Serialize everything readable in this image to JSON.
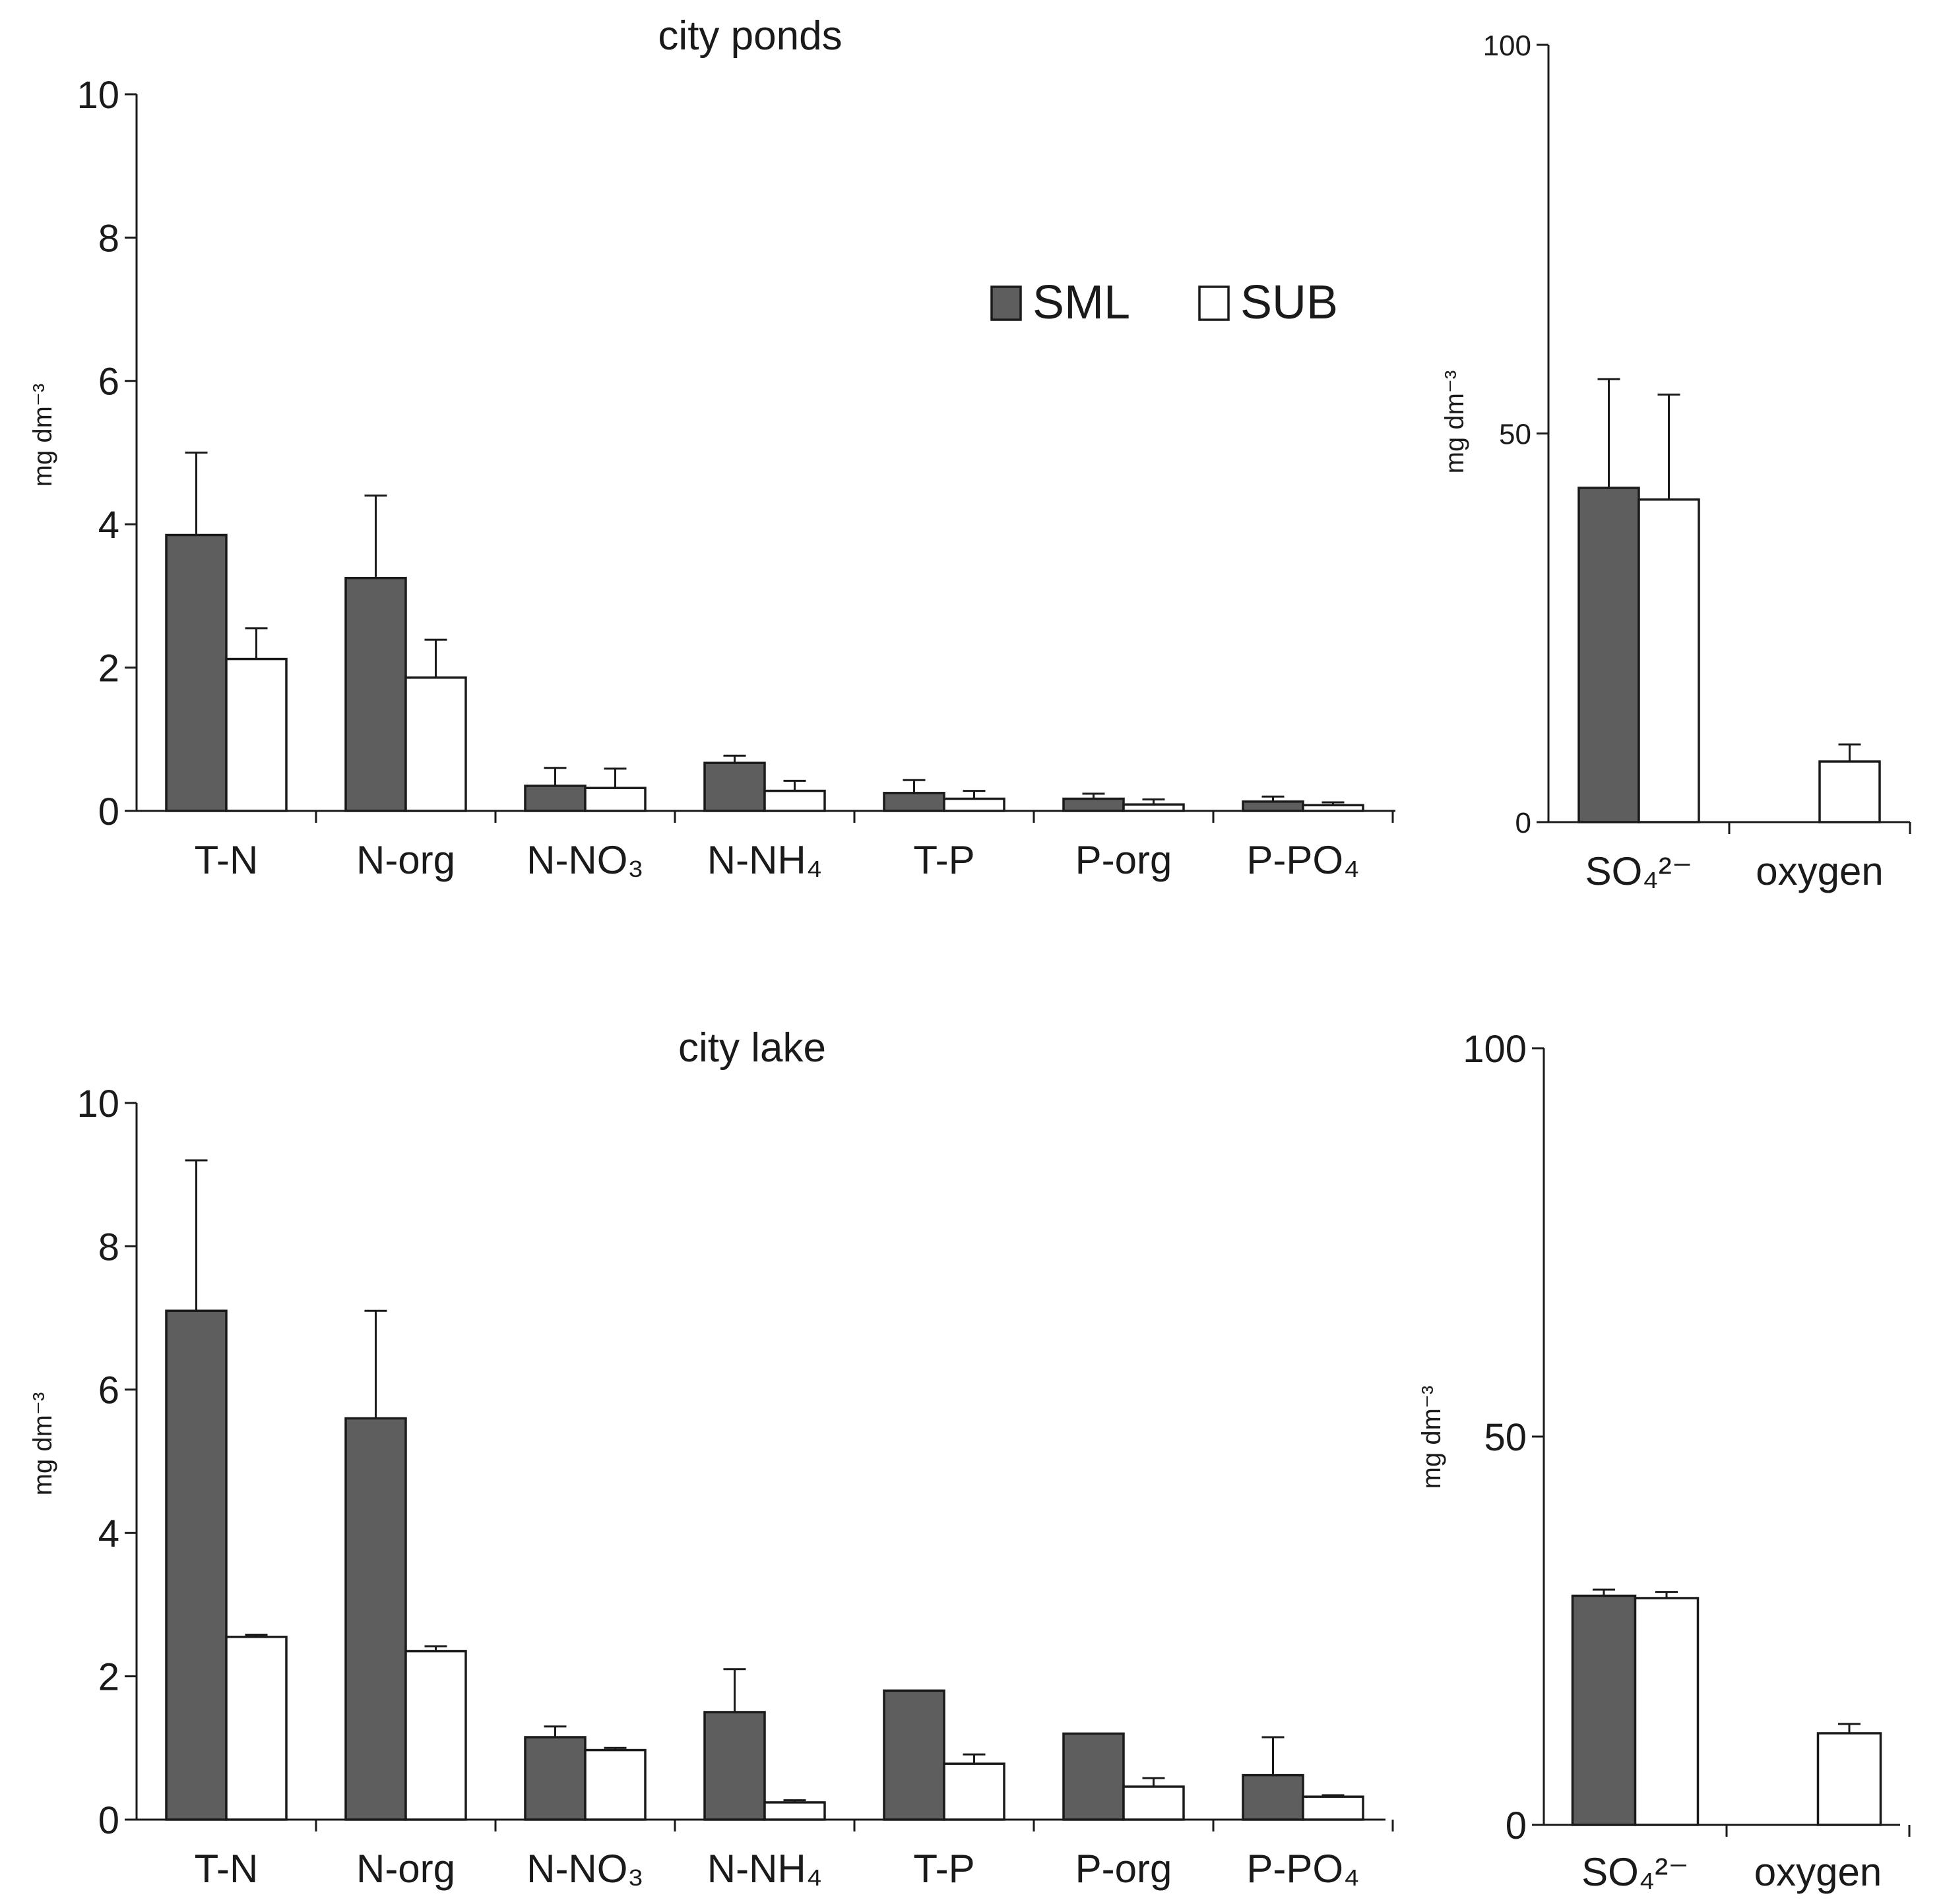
{
  "colors": {
    "sml": "#5e5e5e",
    "sub": "#ffffff",
    "axis": "#1a1a1a",
    "text": "#1a1a1a"
  },
  "legend": {
    "position": "top-right",
    "items": [
      {
        "label": "SML",
        "color": "#5e5e5e"
      },
      {
        "label": "SUB",
        "color": "#ffffff"
      }
    ]
  },
  "chart_data": [
    {
      "id": "ponds-main",
      "type": "bar",
      "title": "city ponds",
      "xlabel": "",
      "ylabel": "mg dm⁻³",
      "ylim": [
        0,
        10
      ],
      "yticks": [
        "0",
        "2",
        "4",
        "6",
        "8",
        "10"
      ],
      "grid": false,
      "categories": [
        "T-N",
        "N-org",
        "N-NO₃",
        "N-NH₄",
        "T-P",
        "P-org",
        "P-PO₄"
      ],
      "series": [
        {
          "name": "SML",
          "values": [
            3.85,
            3.25,
            0.35,
            0.67,
            0.25,
            0.17,
            0.13
          ],
          "errors": [
            1.15,
            1.15,
            0.25,
            0.1,
            0.18,
            0.07,
            0.07
          ]
        },
        {
          "name": "SUB",
          "values": [
            2.12,
            1.86,
            0.32,
            0.28,
            0.17,
            0.09,
            0.08
          ],
          "errors": [
            0.43,
            0.53,
            0.27,
            0.14,
            0.11,
            0.07,
            0.04
          ]
        }
      ]
    },
    {
      "id": "ponds-side",
      "type": "bar",
      "title": "",
      "xlabel": "",
      "ylabel": "mg dm⁻³",
      "ylim": [
        0,
        100
      ],
      "yticks": [
        "0",
        "50",
        "100"
      ],
      "grid": false,
      "categories": [
        "SO₄²⁻",
        "oxygen"
      ],
      "series": [
        {
          "name": "SML",
          "values": [
            43,
            null
          ],
          "errors": [
            14,
            null
          ]
        },
        {
          "name": "SUB",
          "values": [
            41.5,
            7.8
          ],
          "errors": [
            13.5,
            2.2
          ]
        }
      ]
    },
    {
      "id": "lake-main",
      "type": "bar",
      "title": "city lake",
      "xlabel": "",
      "ylabel": "mg dm⁻³",
      "ylim": [
        0,
        10
      ],
      "yticks": [
        "0",
        "2",
        "4",
        "6",
        "8",
        "10"
      ],
      "grid": false,
      "categories": [
        "T-N",
        "N-org",
        "N-NO₃",
        "N-NH₄",
        "T-P",
        "P-org",
        "P-PO₄"
      ],
      "series": [
        {
          "name": "SML",
          "values": [
            7.1,
            5.6,
            1.15,
            1.5,
            1.8,
            1.2,
            0.62
          ],
          "errors": [
            2.1,
            1.5,
            0.15,
            0.6,
            0,
            0,
            0.53
          ]
        },
        {
          "name": "SUB",
          "values": [
            2.55,
            2.35,
            0.97,
            0.24,
            0.78,
            0.46,
            0.32
          ],
          "errors": [
            0.03,
            0.07,
            0.03,
            0.03,
            0.13,
            0.12,
            0.02
          ]
        }
      ]
    },
    {
      "id": "lake-side",
      "type": "bar",
      "title": "",
      "xlabel": "",
      "ylabel": "mg dm⁻³",
      "ylim": [
        0,
        100
      ],
      "yticks": [
        "0",
        "50",
        "100"
      ],
      "grid": false,
      "categories": [
        "SO₄²⁻",
        "oxygen"
      ],
      "series": [
        {
          "name": "SML",
          "values": [
            29.5,
            null
          ],
          "errors": [
            0.8,
            null
          ]
        },
        {
          "name": "SUB",
          "values": [
            29.2,
            11.8
          ],
          "errors": [
            0.8,
            1.2
          ]
        }
      ]
    }
  ]
}
